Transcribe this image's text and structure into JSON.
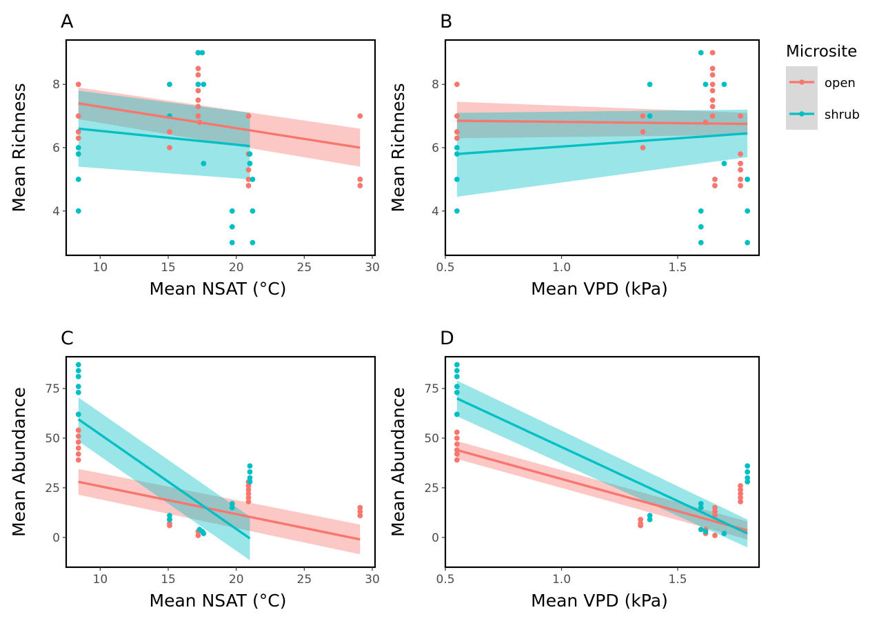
{
  "legend": {
    "title": "Microsite",
    "entries": [
      {
        "name": "open",
        "color": "#F8766D"
      },
      {
        "name": "shrub",
        "color": "#00BFC4"
      }
    ]
  },
  "chart_data": [
    {
      "panel": "A",
      "type": "scatter",
      "xlabel": "Mean NSAT (°C)",
      "ylabel": "Mean Richness",
      "xlim": [
        7.5,
        30.2
      ],
      "ylim": [
        2.6,
        9.4
      ],
      "xticks": [
        10,
        15,
        20,
        25,
        30
      ],
      "yticks": [
        4,
        6,
        8
      ],
      "series": [
        {
          "name": "open",
          "color": "#F8766D",
          "points": [
            [
              8.4,
              8.0
            ],
            [
              8.4,
              7.0
            ],
            [
              8.4,
              6.5
            ],
            [
              8.4,
              6.3
            ],
            [
              8.4,
              5.8
            ],
            [
              15.1,
              7.0
            ],
            [
              15.1,
              6.5
            ],
            [
              15.1,
              6.0
            ],
            [
              17.2,
              9.0
            ],
            [
              17.2,
              8.5
            ],
            [
              17.2,
              8.3
            ],
            [
              17.2,
              8.0
            ],
            [
              17.2,
              7.8
            ],
            [
              17.2,
              7.5
            ],
            [
              17.2,
              7.3
            ],
            [
              17.2,
              7.0
            ],
            [
              17.3,
              6.8
            ],
            [
              20.9,
              7.0
            ],
            [
              20.9,
              5.8
            ],
            [
              20.9,
              5.3
            ],
            [
              20.9,
              5.0
            ],
            [
              20.9,
              4.8
            ],
            [
              29.1,
              7.0
            ],
            [
              29.1,
              5.0
            ],
            [
              29.1,
              4.8
            ]
          ],
          "fit": {
            "x": [
              8.4,
              29.1
            ],
            "y": [
              7.4,
              6.0
            ],
            "ci_lower": [
              6.9,
              5.4
            ],
            "ci_upper": [
              7.9,
              6.6
            ]
          }
        },
        {
          "name": "shrub",
          "color": "#00BFC4",
          "points": [
            [
              8.4,
              6.0
            ],
            [
              8.4,
              5.8
            ],
            [
              8.4,
              5.0
            ],
            [
              8.4,
              4.0
            ],
            [
              15.1,
              8.0
            ],
            [
              15.1,
              7.0
            ],
            [
              17.2,
              9.0
            ],
            [
              17.5,
              9.0
            ],
            [
              17.2,
              8.0
            ],
            [
              17.6,
              8.0
            ],
            [
              17.6,
              5.5
            ],
            [
              19.7,
              4.0
            ],
            [
              19.7,
              3.5
            ],
            [
              19.7,
              3.0
            ],
            [
              21.0,
              5.8
            ],
            [
              21.0,
              5.5
            ],
            [
              21.2,
              5.0
            ],
            [
              21.2,
              4.0
            ],
            [
              21.2,
              3.0
            ]
          ],
          "fit": {
            "x": [
              8.4,
              21.0
            ],
            "y": [
              6.6,
              6.05
            ],
            "ci_lower": [
              5.4,
              5.0
            ],
            "ci_upper": [
              7.8,
              7.1
            ]
          }
        }
      ]
    },
    {
      "panel": "B",
      "type": "scatter",
      "xlabel": "Mean VPD (kPa)",
      "ylabel": "Mean Richness",
      "xlim": [
        0.5,
        1.85
      ],
      "ylim": [
        2.6,
        9.4
      ],
      "xticks": [
        0.5,
        1.0,
        1.5
      ],
      "yticks": [
        4,
        6,
        8
      ],
      "series": [
        {
          "name": "open",
          "color": "#F8766D",
          "points": [
            [
              0.55,
              8.0
            ],
            [
              0.55,
              7.0
            ],
            [
              0.55,
              6.5
            ],
            [
              0.55,
              6.3
            ],
            [
              1.35,
              7.0
            ],
            [
              1.35,
              6.5
            ],
            [
              1.35,
              6.0
            ],
            [
              1.65,
              9.0
            ],
            [
              1.65,
              8.5
            ],
            [
              1.65,
              8.3
            ],
            [
              1.65,
              8.0
            ],
            [
              1.65,
              7.8
            ],
            [
              1.65,
              7.5
            ],
            [
              1.65,
              7.3
            ],
            [
              1.65,
              7.0
            ],
            [
              1.66,
              5.0
            ],
            [
              1.66,
              4.8
            ],
            [
              1.62,
              6.8
            ],
            [
              1.77,
              7.0
            ],
            [
              1.77,
              5.8
            ],
            [
              1.77,
              5.5
            ],
            [
              1.77,
              5.3
            ],
            [
              1.77,
              5.0
            ],
            [
              1.77,
              4.8
            ]
          ],
          "fit": {
            "x": [
              0.55,
              1.8
            ],
            "y": [
              6.85,
              6.75
            ],
            "ci_lower": [
              6.3,
              6.4
            ],
            "ci_upper": [
              7.45,
              7.1
            ]
          }
        },
        {
          "name": "shrub",
          "color": "#00BFC4",
          "points": [
            [
              0.55,
              6.0
            ],
            [
              0.55,
              5.8
            ],
            [
              0.55,
              5.0
            ],
            [
              0.55,
              4.0
            ],
            [
              1.38,
              8.0
            ],
            [
              1.38,
              7.0
            ],
            [
              1.6,
              9.0
            ],
            [
              1.62,
              8.0
            ],
            [
              1.6,
              4.0
            ],
            [
              1.6,
              3.5
            ],
            [
              1.6,
              3.0
            ],
            [
              1.7,
              8.0
            ],
            [
              1.7,
              5.5
            ],
            [
              1.8,
              5.0
            ],
            [
              1.8,
              4.0
            ],
            [
              1.8,
              3.0
            ]
          ],
          "fit": {
            "x": [
              0.55,
              1.8
            ],
            "y": [
              5.8,
              6.45
            ],
            "ci_lower": [
              4.45,
              5.7
            ],
            "ci_upper": [
              7.1,
              7.2
            ]
          }
        }
      ]
    },
    {
      "panel": "C",
      "type": "scatter",
      "xlabel": "Mean NSAT (°C)",
      "ylabel": "Mean Abundance",
      "xlim": [
        7.5,
        30.2
      ],
      "ylim": [
        -15,
        91
      ],
      "xticks": [
        10,
        15,
        20,
        25,
        30
      ],
      "yticks": [
        0,
        25,
        50,
        75
      ],
      "series": [
        {
          "name": "open",
          "color": "#F8766D",
          "points": [
            [
              8.4,
              54
            ],
            [
              8.4,
              51
            ],
            [
              8.4,
              48
            ],
            [
              8.4,
              45
            ],
            [
              8.4,
              42
            ],
            [
              8.4,
              39
            ],
            [
              15.1,
              9
            ],
            [
              15.1,
              7
            ],
            [
              15.1,
              6
            ],
            [
              17.2,
              3
            ],
            [
              17.2,
              1
            ],
            [
              20.9,
              28
            ],
            [
              20.9,
              26
            ],
            [
              20.9,
              24
            ],
            [
              20.9,
              22
            ],
            [
              20.9,
              20
            ],
            [
              20.9,
              18
            ],
            [
              29.1,
              15
            ],
            [
              29.1,
              13
            ],
            [
              29.1,
              11
            ]
          ],
          "fit": {
            "x": [
              8.4,
              29.1
            ],
            "y": [
              28,
              -1
            ],
            "ci_lower": [
              21.5,
              -8.5
            ],
            "ci_upper": [
              34.5,
              6.5
            ]
          }
        },
        {
          "name": "shrub",
          "color": "#00BFC4",
          "points": [
            [
              8.4,
              87
            ],
            [
              8.4,
              84
            ],
            [
              8.4,
              81
            ],
            [
              8.4,
              76
            ],
            [
              8.4,
              73
            ],
            [
              8.4,
              62
            ],
            [
              15.1,
              11
            ],
            [
              15.1,
              9
            ],
            [
              17.3,
              4
            ],
            [
              17.5,
              3
            ],
            [
              17.6,
              2
            ],
            [
              19.7,
              17
            ],
            [
              19.7,
              15
            ],
            [
              21.0,
              36
            ],
            [
              21.0,
              33
            ],
            [
              21.0,
              30
            ],
            [
              21.0,
              28
            ]
          ],
          "fit": {
            "x": [
              8.4,
              21.0
            ],
            "y": [
              59.5,
              -0.5
            ],
            "ci_lower": [
              48.5,
              -11.5
            ],
            "ci_upper": [
              70.5,
              10.5
            ]
          }
        }
      ]
    },
    {
      "panel": "D",
      "type": "scatter",
      "xlabel": "Mean VPD (kPa)",
      "ylabel": "Mean Abundance",
      "xlim": [
        0.5,
        1.85
      ],
      "ylim": [
        -15,
        91
      ],
      "xticks": [
        0.5,
        1.0,
        1.5
      ],
      "yticks": [
        0,
        25,
        50,
        75
      ],
      "series": [
        {
          "name": "open",
          "color": "#F8766D",
          "points": [
            [
              0.55,
              53
            ],
            [
              0.55,
              50
            ],
            [
              0.55,
              47
            ],
            [
              0.55,
              44
            ],
            [
              0.55,
              42
            ],
            [
              0.55,
              39
            ],
            [
              1.34,
              9
            ],
            [
              1.34,
              7
            ],
            [
              1.34,
              6
            ],
            [
              1.62,
              4
            ],
            [
              1.62,
              2
            ],
            [
              1.66,
              15
            ],
            [
              1.66,
              13
            ],
            [
              1.66,
              11
            ],
            [
              1.66,
              1
            ],
            [
              1.77,
              26
            ],
            [
              1.77,
              24
            ],
            [
              1.77,
              22
            ],
            [
              1.77,
              20
            ],
            [
              1.77,
              18
            ]
          ],
          "fit": {
            "x": [
              0.55,
              1.8
            ],
            "y": [
              44,
              3.5
            ],
            "ci_lower": [
              39.5,
              -1
            ],
            "ci_upper": [
              48.5,
              8
            ]
          }
        },
        {
          "name": "shrub",
          "color": "#00BFC4",
          "points": [
            [
              0.55,
              87
            ],
            [
              0.55,
              84
            ],
            [
              0.55,
              81
            ],
            [
              0.55,
              76
            ],
            [
              0.55,
              73
            ],
            [
              0.55,
              62
            ],
            [
              1.38,
              11
            ],
            [
              1.38,
              9
            ],
            [
              1.6,
              17
            ],
            [
              1.6,
              15
            ],
            [
              1.6,
              4
            ],
            [
              1.62,
              3
            ],
            [
              1.7,
              2
            ],
            [
              1.8,
              36
            ],
            [
              1.8,
              33
            ],
            [
              1.8,
              30
            ],
            [
              1.8,
              28
            ]
          ],
          "fit": {
            "x": [
              0.55,
              1.8
            ],
            "y": [
              70,
              2
            ],
            "ci_lower": [
              61,
              -5
            ],
            "ci_upper": [
              79,
              9
            ]
          }
        }
      ]
    }
  ]
}
